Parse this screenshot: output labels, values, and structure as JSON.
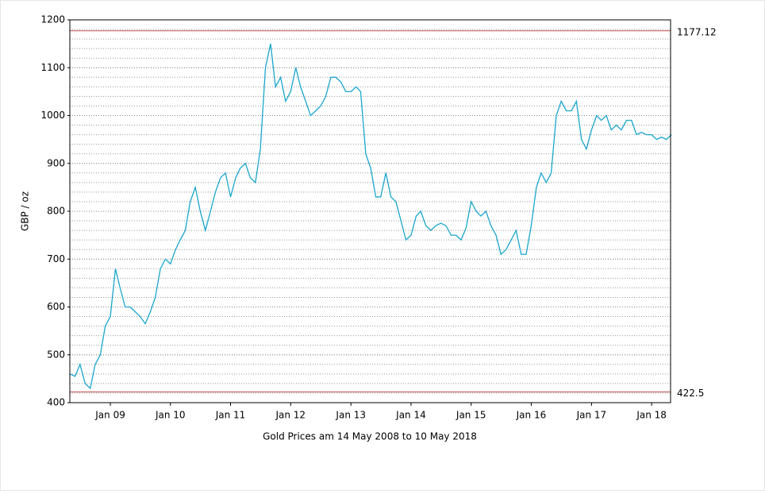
{
  "chart_data": {
    "type": "line",
    "title": "Gold Prices am 14 May 2008 to 10 May 2018",
    "y_label": "GBP / oz",
    "xlim": [
      "2008-05-14",
      "2018-05-10"
    ],
    "xticks": [
      {
        "value": "2009-01",
        "label": "Jan 09"
      },
      {
        "value": "2010-01",
        "label": "Jan 10"
      },
      {
        "value": "2011-01",
        "label": "Jan 11"
      },
      {
        "value": "2012-01",
        "label": "Jan 12"
      },
      {
        "value": "2013-01",
        "label": "Jan 13"
      },
      {
        "value": "2014-01",
        "label": "Jan 14"
      },
      {
        "value": "2015-01",
        "label": "Jan 15"
      },
      {
        "value": "2016-01",
        "label": "Jan 16"
      },
      {
        "value": "2017-01",
        "label": "Jan 17"
      },
      {
        "value": "2018-01",
        "label": "Jan 18"
      }
    ],
    "ylim": [
      400,
      1200
    ],
    "yticks": [
      400,
      500,
      600,
      700,
      800,
      900,
      1000,
      1100,
      1200
    ],
    "grid": true,
    "grid_minor_step": 20,
    "reference_lines": [
      {
        "value": 1177.12,
        "label": "1177.12"
      },
      {
        "value": 422.5,
        "label": "422.5"
      }
    ],
    "reference_color": "#c05050",
    "series": [
      {
        "name": "Gold",
        "color": "#1aa6cc",
        "x": [
          "2008-05",
          "2008-06",
          "2008-07",
          "2008-08",
          "2008-09",
          "2008-10",
          "2008-11",
          "2008-12",
          "2009-01",
          "2009-02",
          "2009-03",
          "2009-04",
          "2009-05",
          "2009-06",
          "2009-07",
          "2009-08",
          "2009-09",
          "2009-10",
          "2009-11",
          "2009-12",
          "2010-01",
          "2010-02",
          "2010-03",
          "2010-04",
          "2010-05",
          "2010-06",
          "2010-07",
          "2010-08",
          "2010-09",
          "2010-10",
          "2010-11",
          "2010-12",
          "2011-01",
          "2011-02",
          "2011-03",
          "2011-04",
          "2011-05",
          "2011-06",
          "2011-07",
          "2011-08",
          "2011-09",
          "2011-10",
          "2011-11",
          "2011-12",
          "2012-01",
          "2012-02",
          "2012-03",
          "2012-04",
          "2012-05",
          "2012-06",
          "2012-07",
          "2012-08",
          "2012-09",
          "2012-10",
          "2012-11",
          "2012-12",
          "2013-01",
          "2013-02",
          "2013-03",
          "2013-04",
          "2013-05",
          "2013-06",
          "2013-07",
          "2013-08",
          "2013-09",
          "2013-10",
          "2013-11",
          "2013-12",
          "2014-01",
          "2014-02",
          "2014-03",
          "2014-04",
          "2014-05",
          "2014-06",
          "2014-07",
          "2014-08",
          "2014-09",
          "2014-10",
          "2014-11",
          "2014-12",
          "2015-01",
          "2015-02",
          "2015-03",
          "2015-04",
          "2015-05",
          "2015-06",
          "2015-07",
          "2015-08",
          "2015-09",
          "2015-10",
          "2015-11",
          "2015-12",
          "2016-01",
          "2016-02",
          "2016-03",
          "2016-04",
          "2016-05",
          "2016-06",
          "2016-07",
          "2016-08",
          "2016-09",
          "2016-10",
          "2016-11",
          "2016-12",
          "2017-01",
          "2017-02",
          "2017-03",
          "2017-04",
          "2017-05",
          "2017-06",
          "2017-07",
          "2017-08",
          "2017-09",
          "2017-10",
          "2017-11",
          "2017-12",
          "2018-01",
          "2018-02",
          "2018-03",
          "2018-04",
          "2018-05"
        ],
        "values": [
          460,
          455,
          480,
          440,
          430,
          480,
          500,
          560,
          580,
          680,
          640,
          600,
          600,
          590,
          580,
          565,
          590,
          620,
          680,
          700,
          690,
          720,
          740,
          760,
          820,
          850,
          800,
          760,
          800,
          840,
          870,
          880,
          830,
          870,
          890,
          900,
          870,
          860,
          930,
          1100,
          1150,
          1060,
          1080,
          1030,
          1050,
          1100,
          1060,
          1030,
          1000,
          1010,
          1020,
          1040,
          1080,
          1080,
          1070,
          1050,
          1050,
          1060,
          1050,
          920,
          890,
          830,
          830,
          880,
          830,
          820,
          780,
          740,
          750,
          790,
          800,
          770,
          760,
          770,
          775,
          770,
          750,
          750,
          740,
          765,
          820,
          800,
          790,
          800,
          770,
          750,
          710,
          720,
          740,
          760,
          710,
          710,
          770,
          850,
          880,
          860,
          880,
          1000,
          1030,
          1010,
          1010,
          1030,
          950,
          930,
          970,
          1000,
          990,
          1000,
          970,
          980,
          970,
          990,
          990,
          960,
          965,
          960,
          960,
          950,
          955,
          950,
          960
        ]
      }
    ]
  }
}
